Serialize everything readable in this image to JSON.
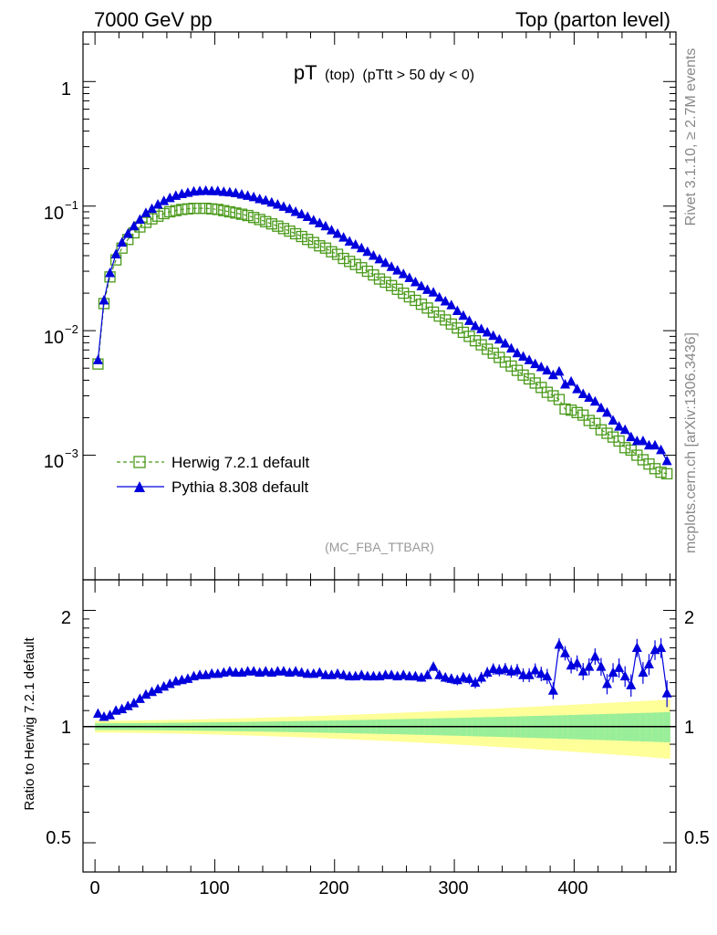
{
  "header": {
    "left": "7000 GeV pp",
    "right": "Top (parton level)"
  },
  "plot_title": {
    "main": "pT",
    "sub1": "(top)",
    "sub2": "(pTtt > 50 dy < 0)"
  },
  "watermark": "(MC_FBA_TTBAR)",
  "side_text": {
    "rivet": "Rivet 3.1.10, ≥ 2.7M events",
    "mcplots": "mcplots.cern.ch [arXiv:1306.3436]"
  },
  "ratio_ylabel": "Ratio to Herwig 7.2.1 default",
  "legend": {
    "herwig": "Herwig 7.2.1 default",
    "pythia": "Pythia 8.308 default"
  },
  "colors": {
    "herwig": "#4a9a1a",
    "pythia": "#0000dd",
    "band_inner": "#99ee99",
    "band_outer": "#ffff99"
  },
  "axis_ticks": {
    "main_y": [
      {
        "base": "1",
        "exp": ""
      },
      {
        "base": "10",
        "exp": "−1"
      },
      {
        "base": "10",
        "exp": "−2"
      },
      {
        "base": "10",
        "exp": "−3"
      }
    ],
    "ratio_y": [
      "2",
      "1",
      "0.5"
    ],
    "x": [
      "0",
      "100",
      "200",
      "300",
      "400"
    ]
  },
  "chart_data": [
    {
      "type": "line",
      "panel": "main",
      "title": "pT (top) (pTtt > 50 dy < 0)",
      "y_scale": "log",
      "xlim": [
        -10,
        485
      ],
      "ylim": [
        0.0001,
        2.5
      ],
      "x": [
        2.5,
        7.5,
        12.5,
        17.5,
        22.5,
        27.5,
        32.5,
        37.5,
        42.5,
        47.5,
        52.5,
        57.5,
        62.5,
        67.5,
        72.5,
        77.5,
        82.5,
        87.5,
        92.5,
        97.5,
        102.5,
        107.5,
        112.5,
        117.5,
        122.5,
        127.5,
        132.5,
        137.5,
        142.5,
        147.5,
        152.5,
        157.5,
        162.5,
        167.5,
        172.5,
        177.5,
        182.5,
        187.5,
        192.5,
        197.5,
        202.5,
        207.5,
        212.5,
        217.5,
        222.5,
        227.5,
        232.5,
        237.5,
        242.5,
        247.5,
        252.5,
        257.5,
        262.5,
        267.5,
        272.5,
        277.5,
        282.5,
        287.5,
        292.5,
        297.5,
        302.5,
        307.5,
        312.5,
        317.5,
        322.5,
        327.5,
        332.5,
        337.5,
        342.5,
        347.5,
        352.5,
        357.5,
        362.5,
        367.5,
        372.5,
        377.5,
        382.5,
        387.5,
        392.5,
        397.5,
        402.5,
        407.5,
        412.5,
        417.5,
        422.5,
        427.5,
        432.5,
        437.5,
        442.5,
        447.5,
        452.5,
        457.5,
        462.5,
        467.5,
        472.5,
        477.5
      ],
      "series": [
        {
          "name": "Herwig 7.2.1 default",
          "values": [
            0.0054,
            0.0165,
            0.027,
            0.037,
            0.046,
            0.054,
            0.061,
            0.068,
            0.074,
            0.079,
            0.083,
            0.087,
            0.09,
            0.092,
            0.094,
            0.095,
            0.096,
            0.096,
            0.096,
            0.095,
            0.094,
            0.092,
            0.09,
            0.088,
            0.086,
            0.084,
            0.081,
            0.078,
            0.075,
            0.072,
            0.069,
            0.066,
            0.063,
            0.06,
            0.057,
            0.054,
            0.051,
            0.048,
            0.046,
            0.043,
            0.041,
            0.038,
            0.036,
            0.034,
            0.032,
            0.03,
            0.028,
            0.026,
            0.0245,
            0.023,
            0.0215,
            0.02,
            0.0187,
            0.0175,
            0.0163,
            0.0152,
            0.0141,
            0.0131,
            0.0122,
            0.0113,
            0.0105,
            0.0097,
            0.009,
            0.0083,
            0.0077,
            0.0071,
            0.0066,
            0.0061,
            0.0056,
            0.0052,
            0.0048,
            0.0044,
            0.0041,
            0.0038,
            0.0035,
            0.0032,
            0.003,
            0.0028,
            0.00235,
            0.0023,
            0.0022,
            0.0021,
            0.0019,
            0.0018,
            0.0016,
            0.0015,
            0.0014,
            0.0013,
            0.00115,
            0.0011,
            0.001,
            0.00092,
            0.00085,
            0.00078,
            0.00073,
            0.00071
          ]
        },
        {
          "name": "Pythia 8.308 default",
          "values": [
            0.0058,
            0.0175,
            0.029,
            0.041,
            0.051,
            0.06,
            0.069,
            0.078,
            0.088,
            0.095,
            0.103,
            0.11,
            0.116,
            0.121,
            0.125,
            0.128,
            0.131,
            0.132,
            0.133,
            0.132,
            0.132,
            0.13,
            0.129,
            0.127,
            0.124,
            0.121,
            0.118,
            0.114,
            0.111,
            0.107,
            0.103,
            0.099,
            0.095,
            0.09,
            0.086,
            0.082,
            0.077,
            0.073,
            0.069,
            0.064,
            0.06,
            0.056,
            0.052,
            0.049,
            0.046,
            0.043,
            0.04,
            0.0375,
            0.035,
            0.0325,
            0.0305,
            0.0285,
            0.0265,
            0.0245,
            0.0228,
            0.0213,
            0.0203,
            0.0185,
            0.0172,
            0.016,
            0.0144,
            0.0132,
            0.012,
            0.0109,
            0.0103,
            0.0097,
            0.0091,
            0.0085,
            0.0079,
            0.0072,
            0.0066,
            0.0062,
            0.0058,
            0.0054,
            0.0051,
            0.0048,
            0.0044,
            0.0047,
            0.0037,
            0.0039,
            0.0034,
            0.0031,
            0.0029,
            0.0027,
            0.0024,
            0.0022,
            0.0019,
            0.0017,
            0.0016,
            0.0014,
            0.0013,
            0.0013,
            0.0012,
            0.0012,
            0.0011,
            0.0009
          ]
        }
      ],
      "legend_position": "bottom-left"
    },
    {
      "type": "line",
      "panel": "ratio",
      "ylabel": "Ratio to Herwig 7.2.1 default",
      "y_scale": "log",
      "xlim": [
        -10,
        485
      ],
      "ylim": [
        0.42,
        2.4
      ],
      "x": [
        2.5,
        7.5,
        12.5,
        17.5,
        22.5,
        27.5,
        32.5,
        37.5,
        42.5,
        47.5,
        52.5,
        57.5,
        62.5,
        67.5,
        72.5,
        77.5,
        82.5,
        87.5,
        92.5,
        97.5,
        102.5,
        107.5,
        112.5,
        117.5,
        122.5,
        127.5,
        132.5,
        137.5,
        142.5,
        147.5,
        152.5,
        157.5,
        162.5,
        167.5,
        172.5,
        177.5,
        182.5,
        187.5,
        192.5,
        197.5,
        202.5,
        207.5,
        212.5,
        217.5,
        222.5,
        227.5,
        232.5,
        237.5,
        242.5,
        247.5,
        252.5,
        257.5,
        262.5,
        267.5,
        272.5,
        277.5,
        282.5,
        287.5,
        292.5,
        297.5,
        302.5,
        307.5,
        312.5,
        317.5,
        322.5,
        327.5,
        332.5,
        337.5,
        342.5,
        347.5,
        352.5,
        357.5,
        362.5,
        367.5,
        372.5,
        377.5,
        382.5,
        387.5,
        392.5,
        397.5,
        402.5,
        407.5,
        412.5,
        417.5,
        422.5,
        427.5,
        432.5,
        437.5,
        442.5,
        447.5,
        452.5,
        457.5,
        462.5,
        467.5,
        472.5,
        477.5
      ],
      "series": [
        {
          "name": "Pythia 8.308 default",
          "values": [
            1.08,
            1.06,
            1.07,
            1.1,
            1.11,
            1.13,
            1.15,
            1.18,
            1.21,
            1.23,
            1.25,
            1.27,
            1.29,
            1.31,
            1.32,
            1.33,
            1.35,
            1.36,
            1.36,
            1.37,
            1.37,
            1.38,
            1.39,
            1.38,
            1.38,
            1.39,
            1.39,
            1.38,
            1.39,
            1.38,
            1.39,
            1.39,
            1.38,
            1.39,
            1.38,
            1.37,
            1.37,
            1.38,
            1.36,
            1.36,
            1.37,
            1.36,
            1.35,
            1.35,
            1.36,
            1.35,
            1.35,
            1.35,
            1.36,
            1.36,
            1.35,
            1.36,
            1.35,
            1.35,
            1.34,
            1.36,
            1.43,
            1.36,
            1.34,
            1.33,
            1.32,
            1.34,
            1.33,
            1.3,
            1.34,
            1.38,
            1.41,
            1.4,
            1.41,
            1.39,
            1.4,
            1.36,
            1.36,
            1.4,
            1.37,
            1.35,
            1.24,
            1.63,
            1.55,
            1.44,
            1.46,
            1.39,
            1.43,
            1.52,
            1.43,
            1.29,
            1.38,
            1.42,
            1.35,
            1.28,
            1.6,
            1.38,
            1.45,
            1.58,
            1.6,
            1.22
          ]
        }
      ],
      "reference_line": 1
    }
  ]
}
